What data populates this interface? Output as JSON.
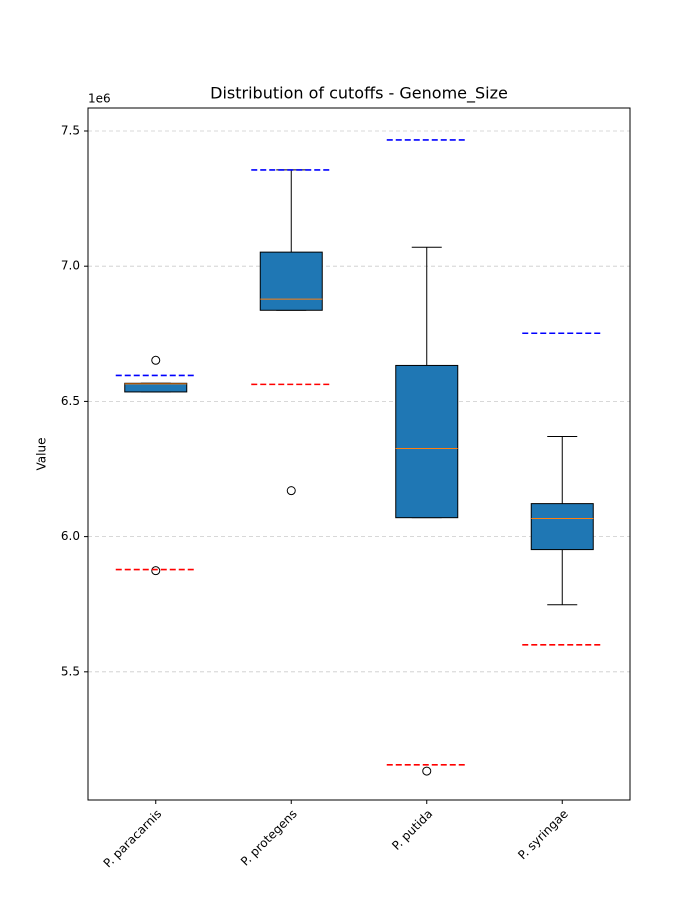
{
  "chart_data": {
    "type": "box",
    "title": "Distribution of cutoffs - Genome_Size",
    "y_label": "Value",
    "y_offset_label": "1e6",
    "categories": [
      "P. paracarnis",
      "P. protegens",
      "P. putida",
      "P. syringae"
    ],
    "box_color": "#1f77b4",
    "median_color": "#ff7f0e",
    "upper_cutoff_color": "#0000ff",
    "lower_cutoff_color": "#ff0000",
    "boxes": [
      {
        "whislo": 6.535,
        "q1": 6.535,
        "med": 6.565,
        "q3": 6.567,
        "whishi": 6.567,
        "fliers": [
          6.652,
          5.874
        ],
        "upper_cutoff": 6.596,
        "lower_cutoff": 5.878
      },
      {
        "whislo": 6.837,
        "q1": 6.837,
        "med": 6.878,
        "q3": 7.052,
        "whishi": 7.356,
        "fliers": [
          6.17
        ],
        "upper_cutoff": 7.356,
        "lower_cutoff": 6.563
      },
      {
        "whislo": 6.07,
        "q1": 6.07,
        "med": 6.326,
        "q3": 6.633,
        "whishi": 7.07,
        "fliers": [
          5.133
        ],
        "upper_cutoff": 7.467,
        "lower_cutoff": 5.156
      },
      {
        "whislo": 5.748,
        "q1": 5.952,
        "med": 6.067,
        "q3": 6.122,
        "whishi": 6.37,
        "fliers": [],
        "upper_cutoff": 6.752,
        "lower_cutoff": 5.6
      }
    ],
    "ylim": [
      5.026,
      7.585
    ],
    "yticks": [
      5.5,
      {
        "value": 6,
        "label": "6.0"
      },
      6.5,
      {
        "value": 7,
        "label": "7.0"
      },
      7.5
    ],
    "grid": true
  }
}
